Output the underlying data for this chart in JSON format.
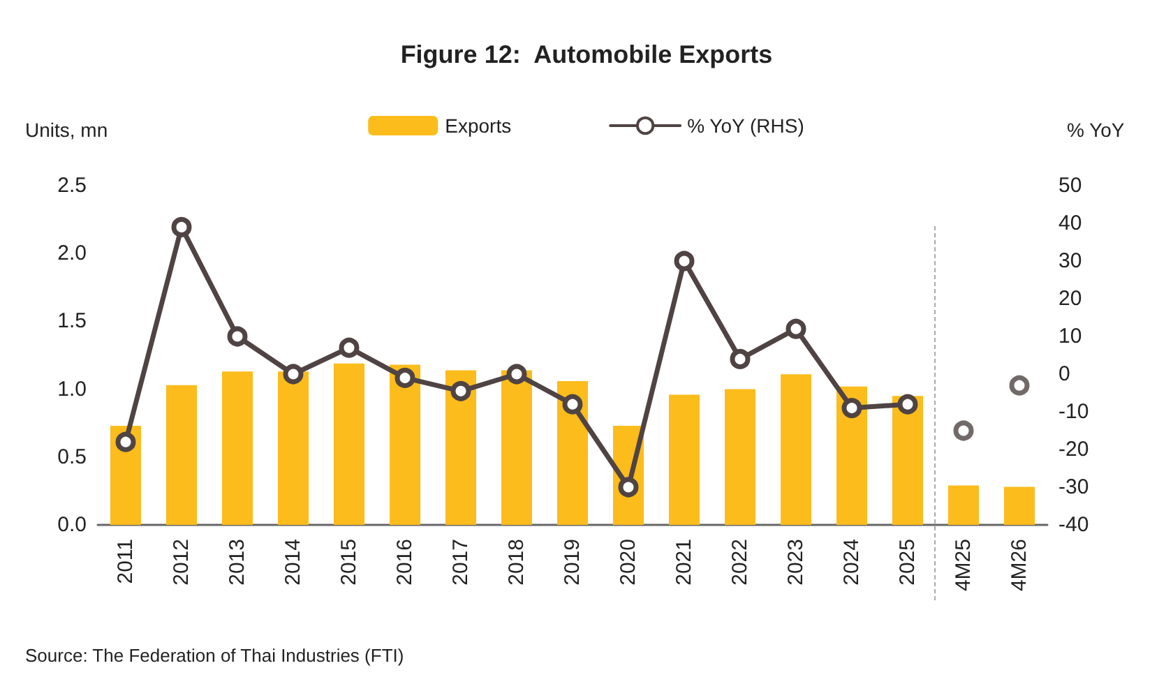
{
  "chart_data": {
    "type": "bar",
    "title": "Figure 12:  Automobile Exports",
    "categories": [
      "2011",
      "2012",
      "2013",
      "2014",
      "2015",
      "2016",
      "2017",
      "2018",
      "2019",
      "2020",
      "2021",
      "2022",
      "2023",
      "2024",
      "2025",
      "4M25",
      "4M26"
    ],
    "series": [
      {
        "name": "Exports",
        "color": "#fbbc1c",
        "values": [
          0.73,
          1.03,
          1.13,
          1.13,
          1.19,
          1.18,
          1.14,
          1.14,
          1.06,
          0.73,
          0.96,
          1.0,
          1.11,
          1.02,
          0.95,
          0.29,
          0.28
        ]
      },
      {
        "name": "% YoY (RHS)",
        "type": "line",
        "axis": "y2",
        "color": "#4f4343",
        "values": [
          -18,
          39,
          10,
          0,
          7,
          -1,
          -4.5,
          0,
          -8,
          -30,
          30,
          4,
          12,
          -9,
          -8,
          null,
          null
        ]
      },
      {
        "type": "scatter",
        "axis": "y2",
        "color": "#4f4343",
        "values": [
          null,
          null,
          null,
          null,
          null,
          null,
          null,
          null,
          null,
          null,
          null,
          null,
          null,
          null,
          null,
          -15,
          -3
        ]
      }
    ],
    "ylabel": "Units, mn",
    "y2label": "% YoY",
    "ylim": [
      0,
      2.5
    ],
    "yticks": [
      {
        "value": 0,
        "label": "0.0"
      },
      {
        "value": 0.5,
        "label": "0.5"
      },
      {
        "value": 1,
        "label": "1.0"
      },
      {
        "value": 1.5,
        "label": "1.5"
      },
      {
        "value": 2,
        "label": "2.0"
      },
      {
        "value": 2.5,
        "label": "2.5"
      }
    ],
    "y2lim": [
      -40,
      50
    ],
    "y2ticks": [
      -40,
      -30,
      -20,
      -10,
      0,
      10,
      20,
      30,
      40,
      50
    ],
    "marker": "circle",
    "legend": "top",
    "grid": false,
    "annotations": [
      "Source: The Federation of Thai Industries (FTI)"
    ]
  }
}
